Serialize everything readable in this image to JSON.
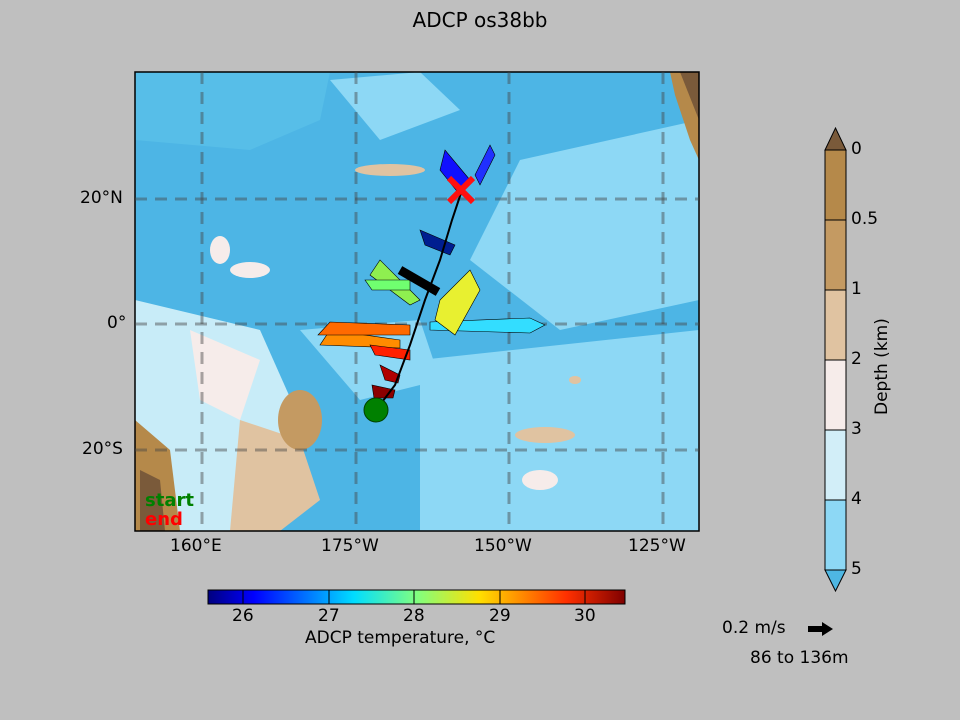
{
  "chart_data": {
    "type": "map",
    "title": "ADCP os38bb",
    "lon_ticks": [
      "160°E",
      "175°W",
      "150°W",
      "125°W"
    ],
    "lat_ticks": [
      "20°N",
      "0°",
      "20°S"
    ],
    "legend": {
      "start": "start",
      "end": "end"
    },
    "start_marker_color": "#008000",
    "end_marker_color": "#ff0000",
    "temperature_colorbar": {
      "label": "ADCP temperature, °C",
      "ticks": [
        "26",
        "27",
        "28",
        "29",
        "30"
      ],
      "range": [
        25.6,
        30.5
      ]
    },
    "depth_colorbar": {
      "label": "Depth (km)",
      "ticks": [
        "0",
        "0.5",
        "1",
        "2",
        "3",
        "4",
        "5"
      ],
      "colors": [
        "#b5894a",
        "#c49a62",
        "#e0c3a1",
        "#f6ecea",
        "#d2eef8",
        "#8dd8f5",
        "#55bde6"
      ],
      "extend_top_color": "#7a5a3a",
      "extend_bottom_color": "#4eb7e3"
    },
    "reference_vector": {
      "label": "0.2 m/s",
      "depth_range": "86 to 136m"
    }
  }
}
